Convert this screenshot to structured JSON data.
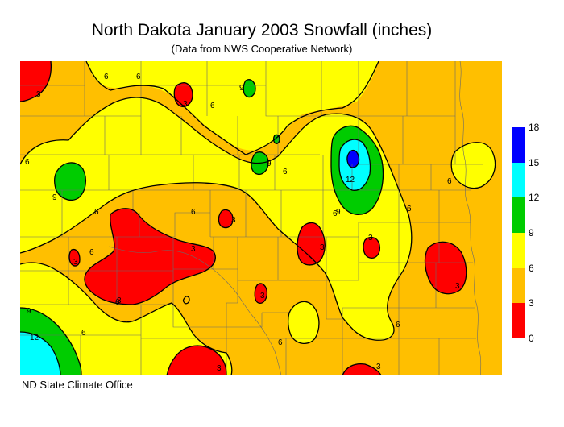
{
  "title": "North Dakota January 2003 Snowfall (inches)",
  "subtitle": "(Data from NWS Cooperative Network)",
  "credit": "ND State Climate Office",
  "legend": {
    "labels": [
      "18",
      "15",
      "12",
      "9",
      "6",
      "3",
      "0"
    ],
    "bins": [
      {
        "min": 15,
        "max": 18,
        "color": "#0000ff"
      },
      {
        "min": 12,
        "max": 15,
        "color": "#00ffff"
      },
      {
        "min": 9,
        "max": 12,
        "color": "#00cc00"
      },
      {
        "min": 6,
        "max": 9,
        "color": "#ffff00"
      },
      {
        "min": 3,
        "max": 6,
        "color": "#ffbf00"
      },
      {
        "min": 0,
        "max": 3,
        "color": "#ff0000"
      }
    ]
  },
  "contour_labels": [
    "3",
    "6",
    "9",
    "12"
  ]
}
